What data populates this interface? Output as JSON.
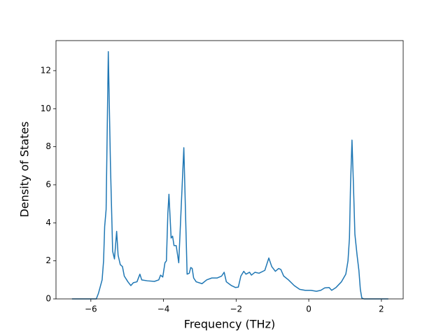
{
  "chart_data": {
    "type": "line",
    "xlabel": "Frequency (THz)",
    "ylabel": "Density of States",
    "color": "#1f77b4",
    "x": [
      -6.52,
      -5.85,
      -5.79,
      -5.69,
      -5.65,
      -5.62,
      -5.58,
      -5.52,
      -5.46,
      -5.4,
      -5.35,
      -5.29,
      -5.25,
      -5.19,
      -5.13,
      -5.08,
      -4.98,
      -4.9,
      -4.83,
      -4.73,
      -4.65,
      -4.6,
      -4.44,
      -4.25,
      -4.13,
      -4.08,
      -4.02,
      -3.96,
      -3.92,
      -3.88,
      -3.85,
      -3.79,
      -3.75,
      -3.71,
      -3.65,
      -3.58,
      -3.52,
      -3.44,
      -3.38,
      -3.35,
      -3.29,
      -3.25,
      -3.21,
      -3.17,
      -3.1,
      -2.94,
      -2.81,
      -2.67,
      -2.52,
      -2.4,
      -2.33,
      -2.27,
      -2.13,
      -2.02,
      -1.94,
      -1.87,
      -1.79,
      -1.73,
      -1.63,
      -1.58,
      -1.48,
      -1.37,
      -1.21,
      -1.1,
      -1.02,
      -0.92,
      -0.83,
      -0.77,
      -0.69,
      -0.56,
      -0.4,
      -0.25,
      -0.1,
      0.06,
      0.21,
      0.33,
      0.44,
      0.56,
      0.63,
      0.75,
      0.9,
      1.02,
      1.08,
      1.12,
      1.15,
      1.19,
      1.23,
      1.27,
      1.33,
      1.38,
      1.42,
      1.46,
      1.52,
      2.19
    ],
    "values": [
      0,
      0,
      0.3,
      1.0,
      2.0,
      3.8,
      4.7,
      13.0,
      7.0,
      2.5,
      2.1,
      3.55,
      2.3,
      1.8,
      1.7,
      1.2,
      0.9,
      0.7,
      0.85,
      0.9,
      1.3,
      1.0,
      0.95,
      0.92,
      1.0,
      1.25,
      1.15,
      1.9,
      2.0,
      4.5,
      5.5,
      3.2,
      3.3,
      2.8,
      2.8,
      1.9,
      4.5,
      7.95,
      3.5,
      1.3,
      1.35,
      1.65,
      1.6,
      1.1,
      0.9,
      0.8,
      1.0,
      1.1,
      1.1,
      1.2,
      1.4,
      0.9,
      0.7,
      0.6,
      0.62,
      1.2,
      1.45,
      1.3,
      1.4,
      1.25,
      1.4,
      1.35,
      1.5,
      2.15,
      1.7,
      1.45,
      1.6,
      1.55,
      1.2,
      1.0,
      0.7,
      0.5,
      0.45,
      0.45,
      0.4,
      0.45,
      0.58,
      0.6,
      0.45,
      0.6,
      0.9,
      1.3,
      2.0,
      3.2,
      6.0,
      8.35,
      6.0,
      3.4,
      2.3,
      1.5,
      0.5,
      0.05,
      0,
      0
    ],
    "xlim": [
      -6.96,
      2.6
    ],
    "ylim": [
      0,
      13.58
    ],
    "xticks": [
      {
        "value": -6,
        "label": "−6"
      },
      {
        "value": -4,
        "label": "−4"
      },
      {
        "value": -2,
        "label": "−2"
      },
      0,
      2
    ],
    "yticks": [
      0,
      2,
      4,
      6,
      8,
      10,
      12
    ]
  }
}
